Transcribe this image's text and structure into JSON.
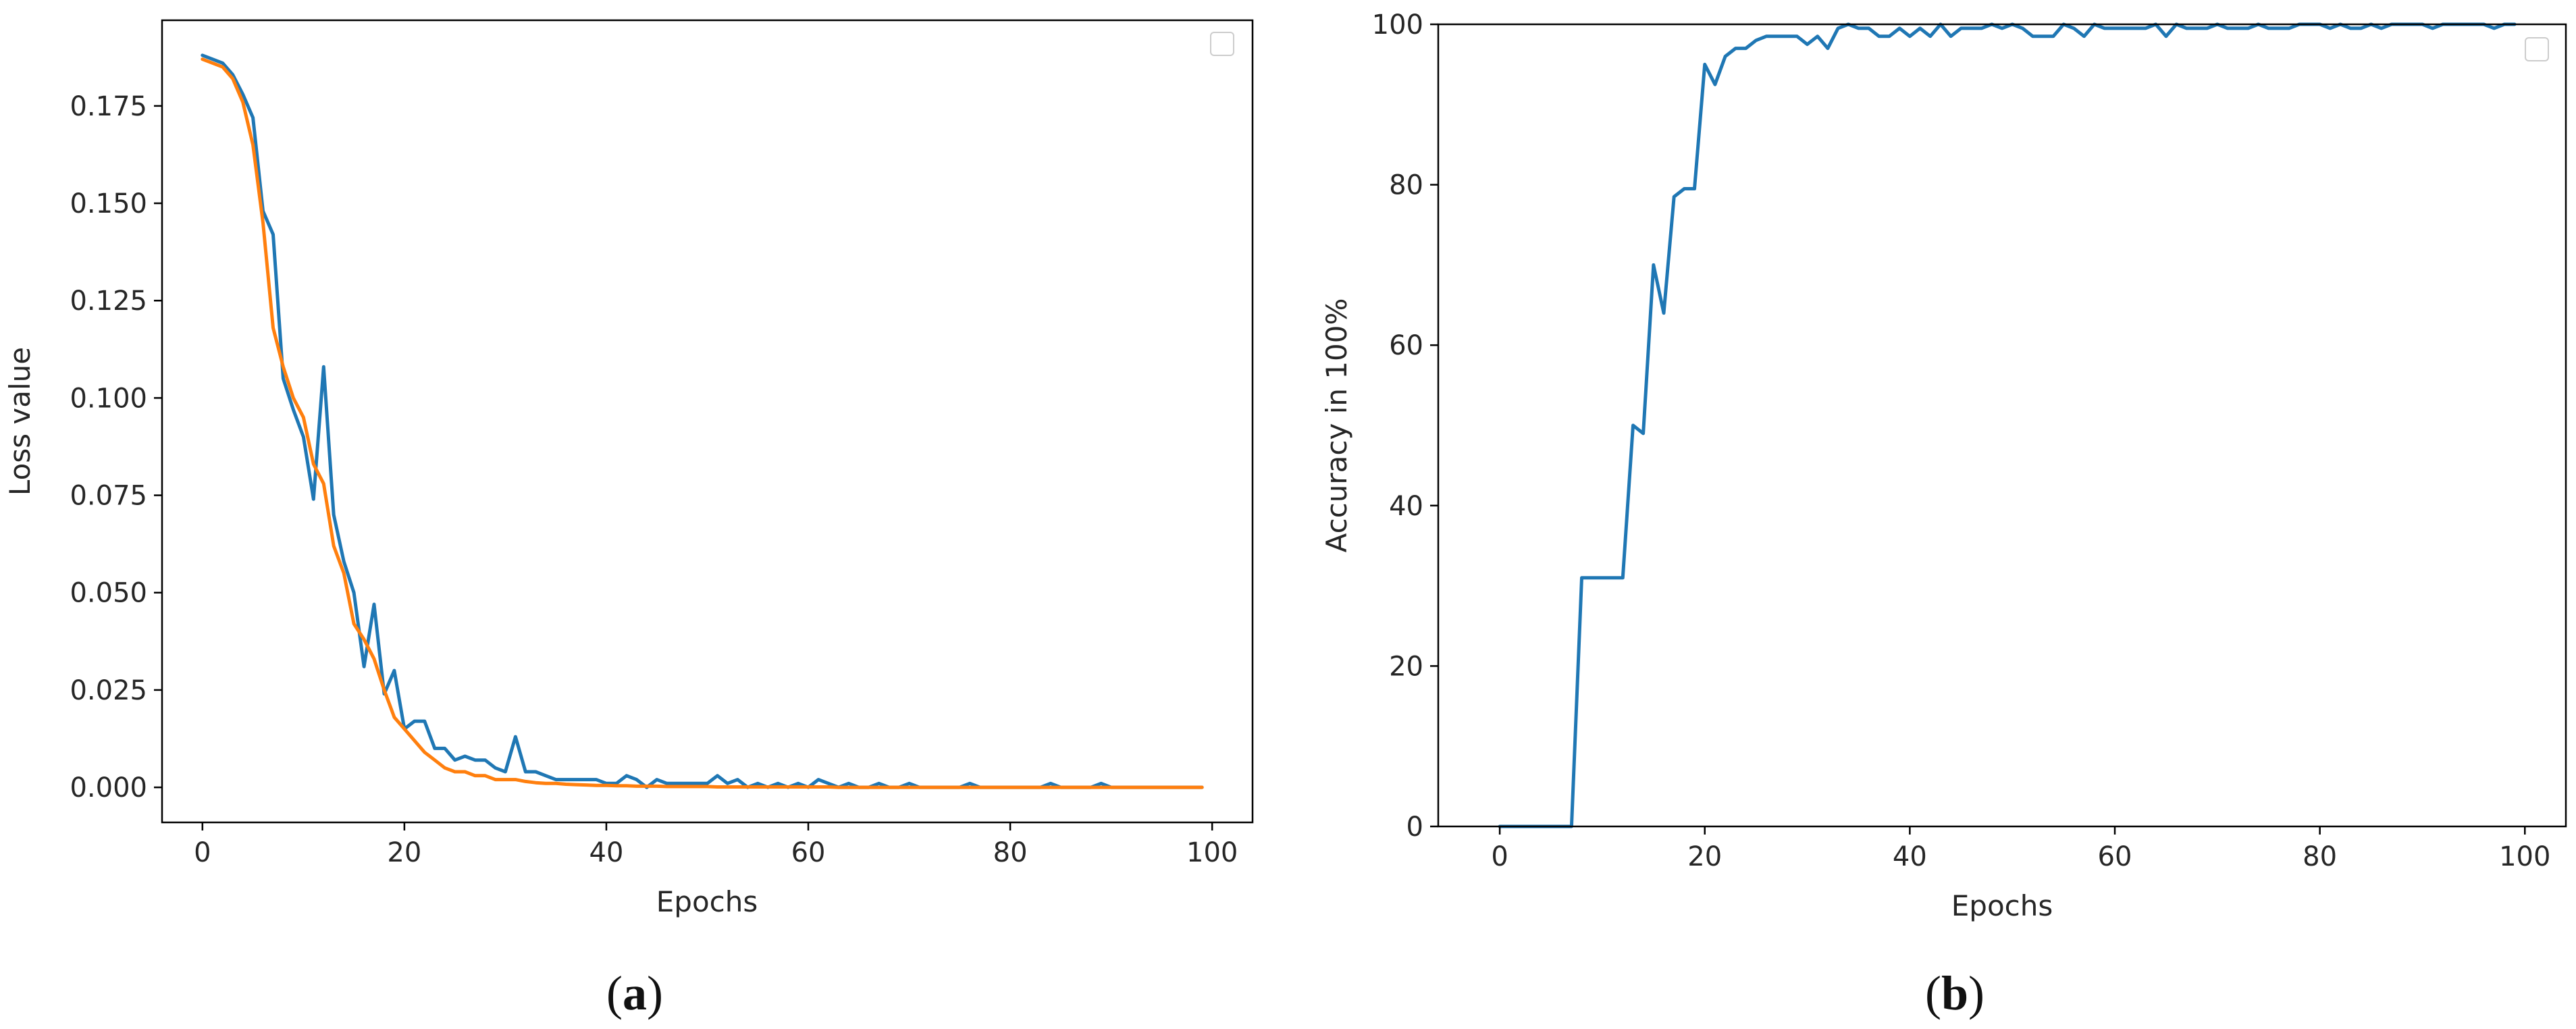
{
  "colors": {
    "series_blue": "#1f77b4",
    "series_orange": "#ff7f0e",
    "axis": "#000000",
    "text": "#262626"
  },
  "panels": [
    {
      "caption": {
        "open": "(",
        "letter": "a",
        "close": ")"
      },
      "chart_data": {
        "type": "line",
        "title": "",
        "xlabel": "Epochs",
        "ylabel": "Loss value",
        "xlim": [
          -4,
          104
        ],
        "ylim": [
          -0.009,
          0.197
        ],
        "xticks": [
          0,
          20,
          40,
          60,
          80,
          100
        ],
        "xtick_labels": [
          "0",
          "20",
          "40",
          "60",
          "80",
          "100"
        ],
        "yticks": [
          0.0,
          0.025,
          0.05,
          0.075,
          0.1,
          0.125,
          0.15,
          0.175
        ],
        "ytick_labels": [
          "0.000",
          "0.025",
          "0.050",
          "0.075",
          "0.100",
          "0.125",
          "0.150",
          "0.175"
        ],
        "grid": false,
        "legend": "upper-right (empty box)",
        "series": [
          {
            "color": "#1f77b4",
            "x": [
              0,
              1,
              2,
              3,
              4,
              5,
              6,
              7,
              8,
              9,
              10,
              11,
              12,
              13,
              14,
              15,
              16,
              17,
              18,
              19,
              20,
              21,
              22,
              23,
              24,
              25,
              26,
              27,
              28,
              29,
              30,
              31,
              32,
              33,
              34,
              35,
              36,
              37,
              38,
              39,
              40,
              41,
              42,
              43,
              44,
              45,
              46,
              47,
              48,
              49,
              50,
              51,
              52,
              53,
              54,
              55,
              56,
              57,
              58,
              59,
              60,
              61,
              62,
              63,
              64,
              65,
              66,
              67,
              68,
              69,
              70,
              71,
              72,
              73,
              74,
              75,
              76,
              77,
              78,
              79,
              80,
              81,
              82,
              83,
              84,
              85,
              86,
              87,
              88,
              89,
              90,
              91,
              92,
              93,
              94,
              95,
              96,
              97,
              98,
              99
            ],
            "y": [
              0.188,
              0.187,
              0.186,
              0.183,
              0.178,
              0.172,
              0.148,
              0.142,
              0.105,
              0.097,
              0.09,
              0.074,
              0.108,
              0.07,
              0.058,
              0.05,
              0.031,
              0.047,
              0.024,
              0.03,
              0.015,
              0.017,
              0.017,
              0.01,
              0.01,
              0.007,
              0.008,
              0.007,
              0.007,
              0.005,
              0.004,
              0.013,
              0.004,
              0.004,
              0.003,
              0.002,
              0.002,
              0.002,
              0.002,
              0.002,
              0.001,
              0.001,
              0.003,
              0.002,
              0.0,
              0.002,
              0.001,
              0.001,
              0.001,
              0.001,
              0.001,
              0.003,
              0.001,
              0.002,
              0.0,
              0.001,
              0.0,
              0.001,
              0.0,
              0.001,
              0.0,
              0.002,
              0.001,
              0.0,
              0.001,
              0.0,
              0.0,
              0.001,
              0.0,
              0.0,
              0.001,
              0.0,
              0.0,
              0.0,
              0.0,
              0.0,
              0.001,
              0.0,
              0.0,
              0.0,
              0.0,
              0.0,
              0.0,
              0.0,
              0.001,
              0.0,
              0.0,
              0.0,
              0.0,
              0.001,
              0.0,
              0.0,
              0.0,
              0.0,
              0.0,
              0.0,
              0.0,
              0.0,
              0.0,
              0.0
            ]
          },
          {
            "color": "#ff7f0e",
            "x": [
              0,
              1,
              2,
              3,
              4,
              5,
              6,
              7,
              8,
              9,
              10,
              11,
              12,
              13,
              14,
              15,
              16,
              17,
              18,
              19,
              20,
              21,
              22,
              23,
              24,
              25,
              26,
              27,
              28,
              29,
              30,
              31,
              32,
              33,
              34,
              35,
              36,
              37,
              38,
              39,
              40,
              41,
              42,
              43,
              44,
              45,
              46,
              47,
              48,
              49,
              50,
              51,
              52,
              53,
              54,
              55,
              56,
              57,
              58,
              59,
              60,
              61,
              62,
              63,
              64,
              65,
              66,
              67,
              68,
              69,
              70,
              71,
              72,
              73,
              74,
              75,
              76,
              77,
              78,
              79,
              80,
              81,
              82,
              83,
              84,
              85,
              86,
              87,
              88,
              89,
              90,
              91,
              92,
              93,
              94,
              95,
              96,
              97,
              98,
              99
            ],
            "y": [
              0.187,
              0.186,
              0.185,
              0.182,
              0.176,
              0.165,
              0.145,
              0.118,
              0.108,
              0.1,
              0.095,
              0.083,
              0.078,
              0.062,
              0.055,
              0.042,
              0.038,
              0.033,
              0.025,
              0.018,
              0.015,
              0.012,
              0.009,
              0.007,
              0.005,
              0.004,
              0.004,
              0.003,
              0.003,
              0.002,
              0.002,
              0.002,
              0.0015,
              0.0012,
              0.001,
              0.001,
              0.0008,
              0.0007,
              0.0006,
              0.0005,
              0.0005,
              0.0004,
              0.0004,
              0.0003,
              0.0003,
              0.0003,
              0.0002,
              0.0002,
              0.0002,
              0.0002,
              0.0002,
              0.0001,
              0.0001,
              0.0001,
              0.0001,
              0.0001,
              0.0001,
              0.0001,
              0.0001,
              0.0001,
              0.0001,
              0.0001,
              0.0001,
              0.0,
              0.0,
              0.0,
              0.0,
              0.0,
              0.0,
              0.0,
              0.0,
              0.0,
              0.0,
              0.0,
              0.0,
              0.0,
              0.0,
              0.0,
              0.0,
              0.0,
              0.0,
              0.0,
              0.0,
              0.0,
              0.0,
              0.0,
              0.0,
              0.0,
              0.0,
              0.0,
              0.0,
              0.0,
              0.0,
              0.0,
              0.0,
              0.0,
              0.0,
              0.0,
              0.0,
              0.0
            ]
          }
        ]
      }
    },
    {
      "caption": {
        "open": "(",
        "letter": "b",
        "close": ")"
      },
      "chart_data": {
        "type": "line",
        "title": "",
        "xlabel": "Epochs",
        "ylabel": "Accuracy in 100%",
        "xlim": [
          -6,
          104
        ],
        "ylim": [
          0,
          100
        ],
        "xticks": [
          0,
          20,
          40,
          60,
          80,
          100
        ],
        "xtick_labels": [
          "0",
          "20",
          "40",
          "60",
          "80",
          "100"
        ],
        "yticks": [
          0,
          20,
          40,
          60,
          80,
          100
        ],
        "ytick_labels": [
          "0",
          "20",
          "40",
          "60",
          "80",
          "100"
        ],
        "grid": false,
        "legend": "upper-right (empty box)",
        "series": [
          {
            "color": "#1f77b4",
            "x": [
              0,
              1,
              2,
              3,
              4,
              5,
              6,
              7,
              8,
              9,
              10,
              11,
              12,
              13,
              14,
              15,
              16,
              17,
              18,
              19,
              20,
              21,
              22,
              23,
              24,
              25,
              26,
              27,
              28,
              29,
              30,
              31,
              32,
              33,
              34,
              35,
              36,
              37,
              38,
              39,
              40,
              41,
              42,
              43,
              44,
              45,
              46,
              47,
              48,
              49,
              50,
              51,
              52,
              53,
              54,
              55,
              56,
              57,
              58,
              59,
              60,
              61,
              62,
              63,
              64,
              65,
              66,
              67,
              68,
              69,
              70,
              71,
              72,
              73,
              74,
              75,
              76,
              77,
              78,
              79,
              80,
              81,
              82,
              83,
              84,
              85,
              86,
              87,
              88,
              89,
              90,
              91,
              92,
              93,
              94,
              95,
              96,
              97,
              98,
              99
            ],
            "y": [
              0,
              0,
              0,
              0,
              0,
              0,
              0,
              0,
              31,
              31,
              31,
              31,
              31,
              50,
              49,
              70,
              64,
              78.5,
              79.5,
              79.5,
              95,
              92.5,
              96,
              97,
              97,
              98,
              98.5,
              98.5,
              98.5,
              98.5,
              97.5,
              98.5,
              97,
              99.5,
              100,
              99.5,
              99.5,
              98.5,
              98.5,
              99.5,
              98.5,
              99.5,
              98.5,
              100,
              98.5,
              99.5,
              99.5,
              99.5,
              100,
              99.5,
              100,
              99.5,
              98.5,
              98.5,
              98.5,
              100,
              99.5,
              98.5,
              100,
              99.5,
              99.5,
              99.5,
              99.5,
              99.5,
              100,
              98.5,
              100,
              99.5,
              99.5,
              99.5,
              100,
              99.5,
              99.5,
              99.5,
              100,
              99.5,
              99.5,
              99.5,
              100,
              100,
              100,
              99.5,
              100,
              99.5,
              99.5,
              100,
              99.5,
              100,
              100,
              100,
              100,
              99.5,
              100,
              100,
              100,
              100,
              100,
              99.5,
              100,
              100
            ]
          }
        ]
      }
    }
  ]
}
